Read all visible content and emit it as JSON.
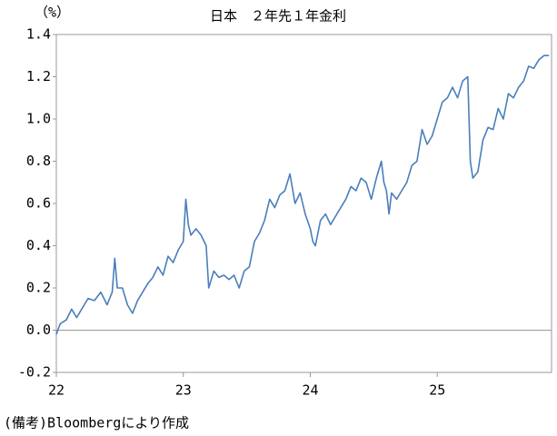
{
  "chart_data": {
    "type": "line",
    "title": "日本　２年先１年金利",
    "y_unit": "（%）",
    "note": "(備考)Bloombergにより作成",
    "xlim": [
      22,
      25.9
    ],
    "xticks": [
      22,
      23,
      24,
      25
    ],
    "ylim": [
      -0.2,
      1.4
    ],
    "yticks": [
      -0.2,
      {
        "value": 0,
        "label": "0.0"
      },
      0.2,
      0.4,
      0.6,
      0.8,
      {
        "value": 1,
        "label": "1.0"
      },
      1.2,
      1.4
    ],
    "zero_line": true,
    "series": [
      {
        "name": "２年先１年金利",
        "color": "#4a7ebb",
        "x": [
          22.0,
          22.03,
          22.08,
          22.12,
          22.16,
          22.2,
          22.25,
          22.3,
          22.35,
          22.4,
          22.44,
          22.46,
          22.48,
          22.52,
          22.56,
          22.6,
          22.64,
          22.68,
          22.72,
          22.76,
          22.8,
          22.84,
          22.88,
          22.92,
          22.96,
          23.0,
          23.02,
          23.04,
          23.06,
          23.1,
          23.14,
          23.18,
          23.2,
          23.24,
          23.28,
          23.32,
          23.36,
          23.4,
          23.44,
          23.48,
          23.52,
          23.56,
          23.6,
          23.64,
          23.68,
          23.72,
          23.76,
          23.8,
          23.84,
          23.88,
          23.92,
          23.96,
          24.0,
          24.02,
          24.04,
          24.08,
          24.12,
          24.16,
          24.2,
          24.24,
          24.28,
          24.32,
          24.36,
          24.4,
          24.44,
          24.48,
          24.52,
          24.56,
          24.58,
          24.6,
          24.62,
          24.64,
          24.68,
          24.72,
          24.76,
          24.8,
          24.84,
          24.88,
          24.92,
          24.96,
          25.0,
          25.04,
          25.08,
          25.12,
          25.16,
          25.2,
          25.24,
          25.26,
          25.28,
          25.32,
          25.36,
          25.4,
          25.44,
          25.48,
          25.52,
          25.56,
          25.6,
          25.64,
          25.68,
          25.72,
          25.76,
          25.8,
          25.84,
          25.88
        ],
        "values": [
          -0.02,
          0.03,
          0.05,
          0.1,
          0.06,
          0.1,
          0.15,
          0.14,
          0.18,
          0.12,
          0.18,
          0.34,
          0.2,
          0.2,
          0.12,
          0.08,
          0.14,
          0.18,
          0.22,
          0.25,
          0.3,
          0.26,
          0.35,
          0.32,
          0.38,
          0.42,
          0.62,
          0.5,
          0.45,
          0.48,
          0.45,
          0.4,
          0.2,
          0.28,
          0.25,
          0.26,
          0.24,
          0.26,
          0.2,
          0.28,
          0.3,
          0.42,
          0.46,
          0.52,
          0.62,
          0.58,
          0.64,
          0.66,
          0.74,
          0.6,
          0.65,
          0.55,
          0.48,
          0.42,
          0.4,
          0.52,
          0.55,
          0.5,
          0.54,
          0.58,
          0.62,
          0.68,
          0.66,
          0.72,
          0.7,
          0.62,
          0.72,
          0.8,
          0.7,
          0.66,
          0.55,
          0.65,
          0.62,
          0.66,
          0.7,
          0.78,
          0.8,
          0.95,
          0.88,
          0.92,
          1.0,
          1.08,
          1.1,
          1.15,
          1.1,
          1.18,
          1.2,
          0.8,
          0.72,
          0.75,
          0.9,
          0.96,
          0.95,
          1.05,
          1.0,
          1.12,
          1.1,
          1.15,
          1.18,
          1.25,
          1.24,
          1.28,
          1.3,
          1.3
        ]
      }
    ]
  }
}
